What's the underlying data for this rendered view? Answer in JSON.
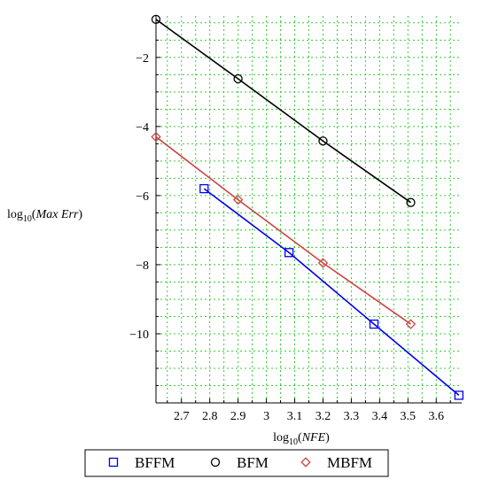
{
  "chart_data": {
    "type": "line",
    "xlabel": {
      "base": "log",
      "sub": "10",
      "arg": "NFE"
    },
    "ylabel": {
      "base": "log",
      "sub": "10",
      "arg": "Max Err"
    },
    "xlim": [
      2.61,
      3.69
    ],
    "ylim": [
      -12.0,
      -0.8
    ],
    "x_ticks": [
      2.7,
      2.8,
      2.9,
      3.0,
      3.1,
      3.2,
      3.3,
      3.4,
      3.5,
      3.6
    ],
    "x_tick_labels": [
      "2.7",
      "2.8",
      "2.9",
      "3",
      "3.1",
      "3.2",
      "3.3",
      "3.4",
      "3.5",
      "3.6"
    ],
    "y_ticks": [
      -2,
      -4,
      -6,
      -8,
      -10
    ],
    "y_tick_labels": [
      "−2",
      "−4",
      "−6",
      "−8",
      "−10"
    ],
    "grid": true,
    "legend_position": "bottom",
    "series": [
      {
        "name": "BFFM",
        "color": "#0000ee",
        "marker": "square",
        "x": [
          2.78,
          3.08,
          3.38,
          3.68
        ],
        "y": [
          -5.8,
          -7.65,
          -9.72,
          -11.78
        ]
      },
      {
        "name": "BFM",
        "color": "#000000",
        "marker": "circle",
        "x": [
          2.61,
          2.9,
          3.2,
          3.51
        ],
        "y": [
          -0.9,
          -2.62,
          -4.42,
          -6.2
        ]
      },
      {
        "name": "MBFM",
        "color": "#cc4444",
        "marker": "diamond",
        "x": [
          2.61,
          2.9,
          3.2,
          3.51
        ],
        "y": [
          -4.3,
          -6.12,
          -7.95,
          -9.72
        ]
      }
    ]
  }
}
